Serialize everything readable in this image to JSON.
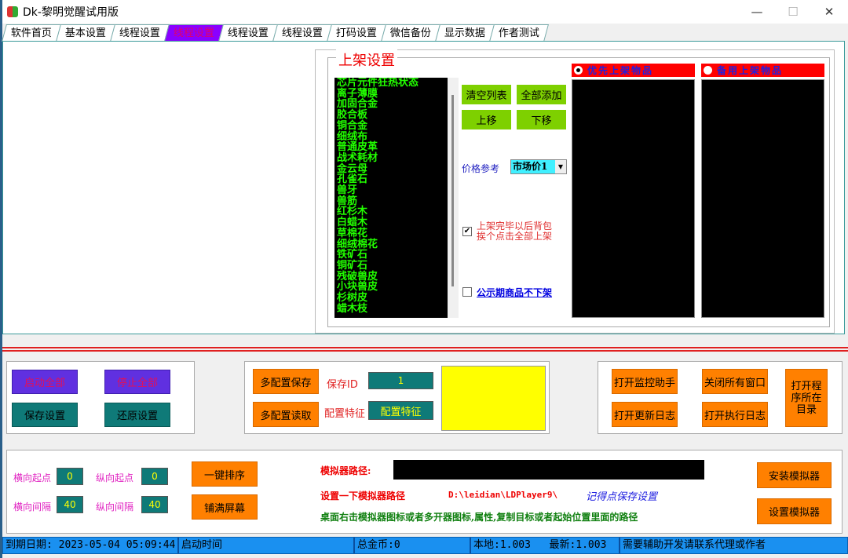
{
  "window": {
    "title": "Dk-黎明觉醒试用版",
    "minimize": "—",
    "maximize": "☐",
    "close": "✕"
  },
  "tabs": [
    {
      "label": "软件首页"
    },
    {
      "label": "基本设置"
    },
    {
      "label": "线程设置"
    },
    {
      "label": "线程设置",
      "active": true
    },
    {
      "label": "线程设置"
    },
    {
      "label": "线程设置"
    },
    {
      "label": "打码设置"
    },
    {
      "label": "微信备份"
    },
    {
      "label": "显示数据"
    },
    {
      "label": "作者测试"
    }
  ],
  "listing": {
    "title": "上架设置",
    "items": [
      "芯片元件狂热状态",
      "离子薄膜",
      "加固合金",
      "胶合板",
      "铜合金",
      "细绒布",
      "普通皮革",
      "战术耗材",
      "金云母",
      "孔雀石",
      "兽牙",
      "兽筋",
      "红杉木",
      "白蜡木",
      "草棉花",
      "细绒棉花",
      "铁矿石",
      "铜矿石",
      "残破兽皮",
      "小块兽皮",
      "杉树皮",
      "蜡木枝"
    ],
    "clear_list": "清空列表",
    "add_all": "全部添加",
    "move_up": "上移",
    "move_down": "下移",
    "price_label": "价格参考",
    "price_value": "市场价1",
    "check1_line1": "上架完毕以后背包",
    "check1_line2": "挨个点击全部上架",
    "check1_checked": true,
    "check2": "公示期商品不下架",
    "check2_checked": false,
    "priority_label": "优先上架物品",
    "priority_selected": true,
    "backup_label": "备用上架物品",
    "backup_selected": false
  },
  "controls": {
    "start_all": "启动全部",
    "stop_all": "停止全部",
    "save_settings": "保存设置",
    "restore_settings": "还原设置"
  },
  "config": {
    "multi_save": "多配置保存",
    "multi_load": "多配置读取",
    "save_id_label": "保存ID",
    "save_id_value": "1",
    "feature_label": "配置特征",
    "feature_value": "配置特征"
  },
  "tools": {
    "open_monitor": "打开监控助手",
    "close_all": "关闭所有窗口",
    "open_update_log": "打开更新日志",
    "open_exec_log": "打开执行日志",
    "open_dir": "打开程序所在目录"
  },
  "emulator": {
    "h_start_label": "横向起点",
    "h_start": "0",
    "v_start_label": "纵向起点",
    "v_start": "0",
    "h_gap_label": "横向间隔",
    "h_gap": "40",
    "v_gap_label": "纵向间隔",
    "v_gap": "40",
    "sort": "一键排序",
    "fill_screen": "铺满屏幕",
    "path_label": "模拟器路径:",
    "path_value": "",
    "hint1": "设置一下模拟器路径",
    "hint_path": "D:\\leidian\\LDPlayer9\\",
    "hint_save": "记得点保存设置",
    "hint2": "桌面右击模拟器图标或者多开器图标,属性,复制目标或者起始位置里面的路径",
    "install": "安装模拟器",
    "setup": "设置模拟器"
  },
  "status": {
    "expiry": "到期日期: 2023-05-04 05:09:44",
    "start_time": "启动时间",
    "total_gold": "总金币:0",
    "version": "本地:1.003   最新:1.003",
    "contact": "需要辅助开发请联系代理或作者"
  }
}
